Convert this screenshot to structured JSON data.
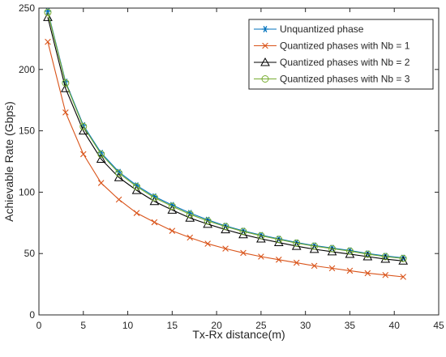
{
  "chart_data": {
    "type": "line",
    "xlabel": "Tx-Rx distance(m)",
    "ylabel": "Achievable Rate (Gbps)",
    "xlim": [
      0,
      45
    ],
    "ylim": [
      0,
      250
    ],
    "xticks": [
      0,
      5,
      10,
      15,
      20,
      25,
      30,
      35,
      40,
      45
    ],
    "yticks": [
      0,
      50,
      100,
      150,
      200,
      250
    ],
    "grid": false,
    "box": true,
    "legend_position": "top-right",
    "x": [
      1,
      3,
      5,
      7,
      9,
      11,
      13,
      15,
      17,
      19,
      21,
      23,
      25,
      27,
      29,
      31,
      33,
      35,
      37,
      39,
      41
    ],
    "series": [
      {
        "name": "Unquantized phase",
        "color": "#0072BD",
        "marker": "asterisk",
        "values": [
          247.5,
          190,
          154.5,
          132,
          116.5,
          105.5,
          96.5,
          89.5,
          83,
          77.5,
          72.5,
          68.5,
          65,
          62,
          59,
          56.5,
          54.5,
          52.5,
          50,
          48,
          46.5
        ]
      },
      {
        "name": "Quantized phases with Nb = 1",
        "color": "#D95319",
        "marker": "x",
        "values": [
          222.5,
          165,
          131,
          107.5,
          94,
          83,
          75.5,
          68.5,
          63,
          58,
          54,
          50.5,
          47.5,
          45,
          42.5,
          40,
          38,
          36,
          34,
          32.5,
          31
        ]
      },
      {
        "name": "Quantized phases with Nb = 2",
        "color": "#000000",
        "marker": "triangle",
        "values": [
          242.5,
          184.5,
          150,
          127,
          112,
          101.5,
          92.5,
          85.5,
          79,
          74,
          69.5,
          65.5,
          62,
          59,
          56,
          53.5,
          51.5,
          49.5,
          47.5,
          45.5,
          44
        ]
      },
      {
        "name": "Quantized phases with Nb = 3",
        "color": "#77AC30",
        "marker": "circle",
        "values": [
          246.5,
          189,
          153.5,
          131,
          115.5,
          104.5,
          95.5,
          88.5,
          82,
          76.5,
          72,
          68,
          64.5,
          61.5,
          58.5,
          56,
          54,
          52,
          49.5,
          47.5,
          46
        ]
      }
    ]
  }
}
